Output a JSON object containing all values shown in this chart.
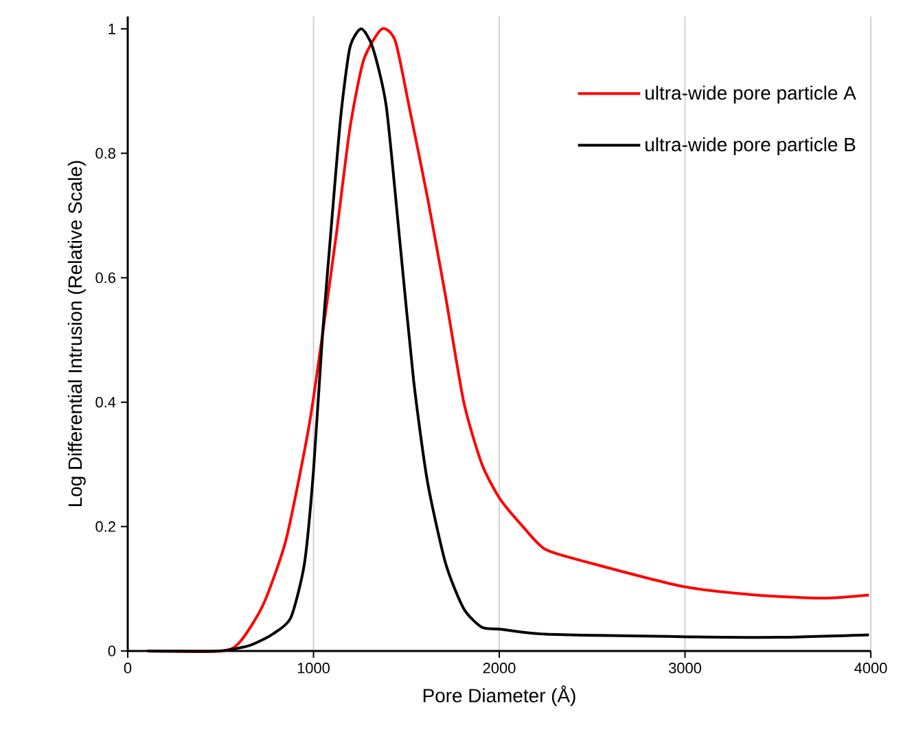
{
  "chart_data": {
    "type": "line",
    "xlabel": "Pore Diameter (Å)",
    "ylabel": "Log Differential Intrusion (Relative Scale)",
    "xlim": [
      0,
      4000
    ],
    "ylim": [
      0,
      1.02
    ],
    "xticks": [
      0,
      1000,
      2000,
      3000,
      4000
    ],
    "yticks": [
      0,
      0.2,
      0.4,
      0.6,
      0.8,
      1
    ],
    "grid": "x",
    "legend": "top right",
    "marker": "none",
    "line_style": "solid",
    "series": [
      {
        "name": "ultra-wide pore particle A",
        "color": "#ff0000",
        "x": [
          105,
          510,
          608,
          730,
          853,
          975,
          1049,
          1123,
          1196,
          1270,
          1368,
          1441,
          1515,
          1613,
          1711,
          1809,
          1907,
          2005,
          2127,
          2250,
          2495,
          2983,
          3377,
          3745,
          3990
        ],
        "values": [
          0,
          0,
          0.016,
          0.075,
          0.18,
          0.36,
          0.51,
          0.67,
          0.84,
          0.95,
          1.0,
          0.98,
          0.875,
          0.73,
          0.57,
          0.4,
          0.3,
          0.244,
          0.2,
          0.163,
          0.141,
          0.104,
          0.09,
          0.085,
          0.09
        ]
      },
      {
        "name": "ultra-wide pore particle B",
        "color": "#000000",
        "x": [
          105,
          485,
          657,
          779,
          877,
          951,
          1000,
          1049,
          1098,
          1147,
          1196,
          1257,
          1319,
          1392,
          1466,
          1539,
          1613,
          1711,
          1809,
          1907,
          2005,
          2250,
          2983,
          3500,
          3990
        ],
        "values": [
          0,
          0,
          0.009,
          0.027,
          0.053,
          0.14,
          0.29,
          0.51,
          0.69,
          0.86,
          0.97,
          1.0,
          0.97,
          0.875,
          0.655,
          0.435,
          0.273,
          0.141,
          0.068,
          0.038,
          0.035,
          0.027,
          0.023,
          0.022,
          0.026
        ]
      }
    ]
  }
}
